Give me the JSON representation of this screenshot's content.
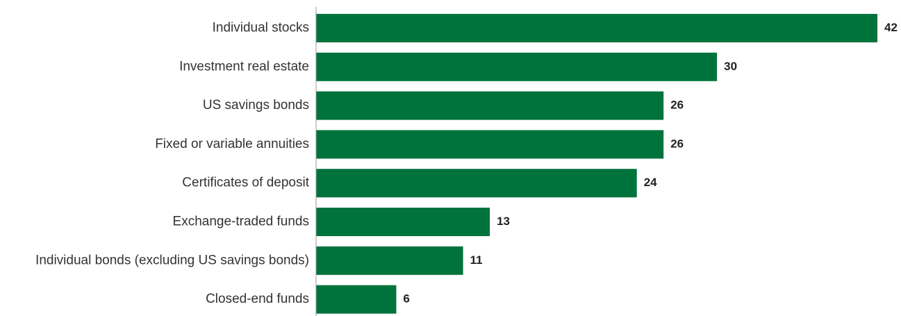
{
  "chart_data": {
    "type": "bar",
    "orientation": "horizontal",
    "categories": [
      "Individual stocks",
      "Investment real estate",
      "US savings bonds",
      "Fixed or variable annuities",
      "Certificates of deposit",
      "Exchange-traded funds",
      "Individual bonds (excluding US savings bonds)",
      "Closed-end funds"
    ],
    "values": [
      42,
      30,
      26,
      26,
      24,
      13,
      11,
      6
    ],
    "data_labels": [
      "42",
      "30",
      "26",
      "26",
      "24",
      "13",
      "11",
      "6"
    ],
    "xlim": [
      0,
      42
    ],
    "grid": false,
    "legend": "none",
    "bar_color": "#00733c",
    "axis_color": "#9a9a9a"
  }
}
